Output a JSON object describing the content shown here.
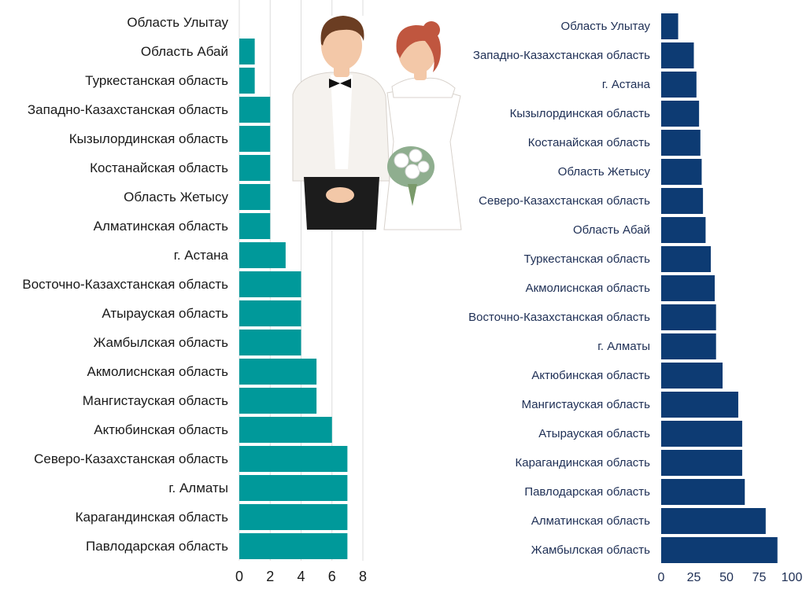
{
  "colors": {
    "left_bar": "#00999A",
    "right_bar": "#0D3B73",
    "suit": "#f5f2ee",
    "dress": "#ffffff",
    "hair_groom": "#6b3d22",
    "hair_bride": "#c0563f",
    "skin": "#f3c8a8",
    "bouquet_leaves": "#8fae8f"
  },
  "illustration": {
    "icon": "bride-and-groom-illustration"
  },
  "chart_data": [
    {
      "type": "bar",
      "orientation": "horizontal",
      "categories": [
        "Область Улытау",
        "Область Абай",
        "Туркестанская область",
        "Западно-Казахстанская область",
        "Кызылординская область",
        "Костанайская область",
        "Область Жетысу",
        "Алматинская область",
        "г. Астана",
        "Восточно-Казахстанская область",
        "Атырауская область",
        "Жамбылская область",
        "Акмолиснская область",
        "Мангистауская область",
        "Актюбинская область",
        "Северо-Казахстанская область",
        "г. Алматы",
        "Карагандинская область",
        "Павлодарская область"
      ],
      "values": [
        0,
        1,
        1,
        2,
        2,
        2,
        2,
        2,
        3,
        4,
        4,
        4,
        5,
        5,
        6,
        7,
        7,
        7,
        7
      ],
      "xlim": [
        0,
        8
      ],
      "ticks": [
        "0",
        "2",
        "4",
        "6",
        "8"
      ],
      "grid": true
    },
    {
      "type": "bar",
      "orientation": "horizontal",
      "categories": [
        "Область Улытау",
        "Западно-Казахстанская область",
        "г. Астана",
        "Кызылординская область",
        "Костанайская область",
        "Область Жетысу",
        "Северо-Казахстанская область",
        "Область Абай",
        "Туркестанская область",
        "Акмолиснская область",
        "Восточно-Казахстанская область",
        "г. Алматы",
        "Актюбинская область",
        "Мангистауская область",
        "Атырауская область",
        "Карагандинская область",
        "Павлодарская область",
        "Алматинская область",
        "Жамбылская область"
      ],
      "values": [
        13,
        25,
        27,
        29,
        30,
        31,
        32,
        34,
        38,
        41,
        42,
        42,
        47,
        59,
        62,
        62,
        64,
        80,
        89
      ],
      "xlim": [
        0,
        100
      ],
      "ticks": [
        "0",
        "25",
        "50",
        "75",
        "100"
      ],
      "grid": false
    }
  ]
}
